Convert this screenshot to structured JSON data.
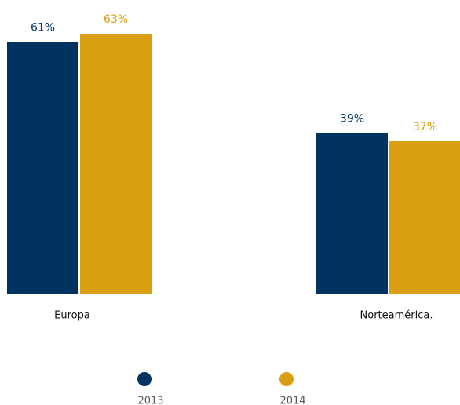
{
  "chart_data": {
    "type": "bar",
    "categories": [
      "Europa",
      "Norteamérica."
    ],
    "series": [
      {
        "name": "2013",
        "color": "#00335f",
        "values": [
          61,
          39
        ],
        "value_labels": [
          "61%",
          "39%"
        ]
      },
      {
        "name": "2014",
        "color": "#d99e12",
        "values": [
          63,
          37
        ],
        "value_labels": [
          "63%",
          "37%"
        ]
      }
    ]
  }
}
